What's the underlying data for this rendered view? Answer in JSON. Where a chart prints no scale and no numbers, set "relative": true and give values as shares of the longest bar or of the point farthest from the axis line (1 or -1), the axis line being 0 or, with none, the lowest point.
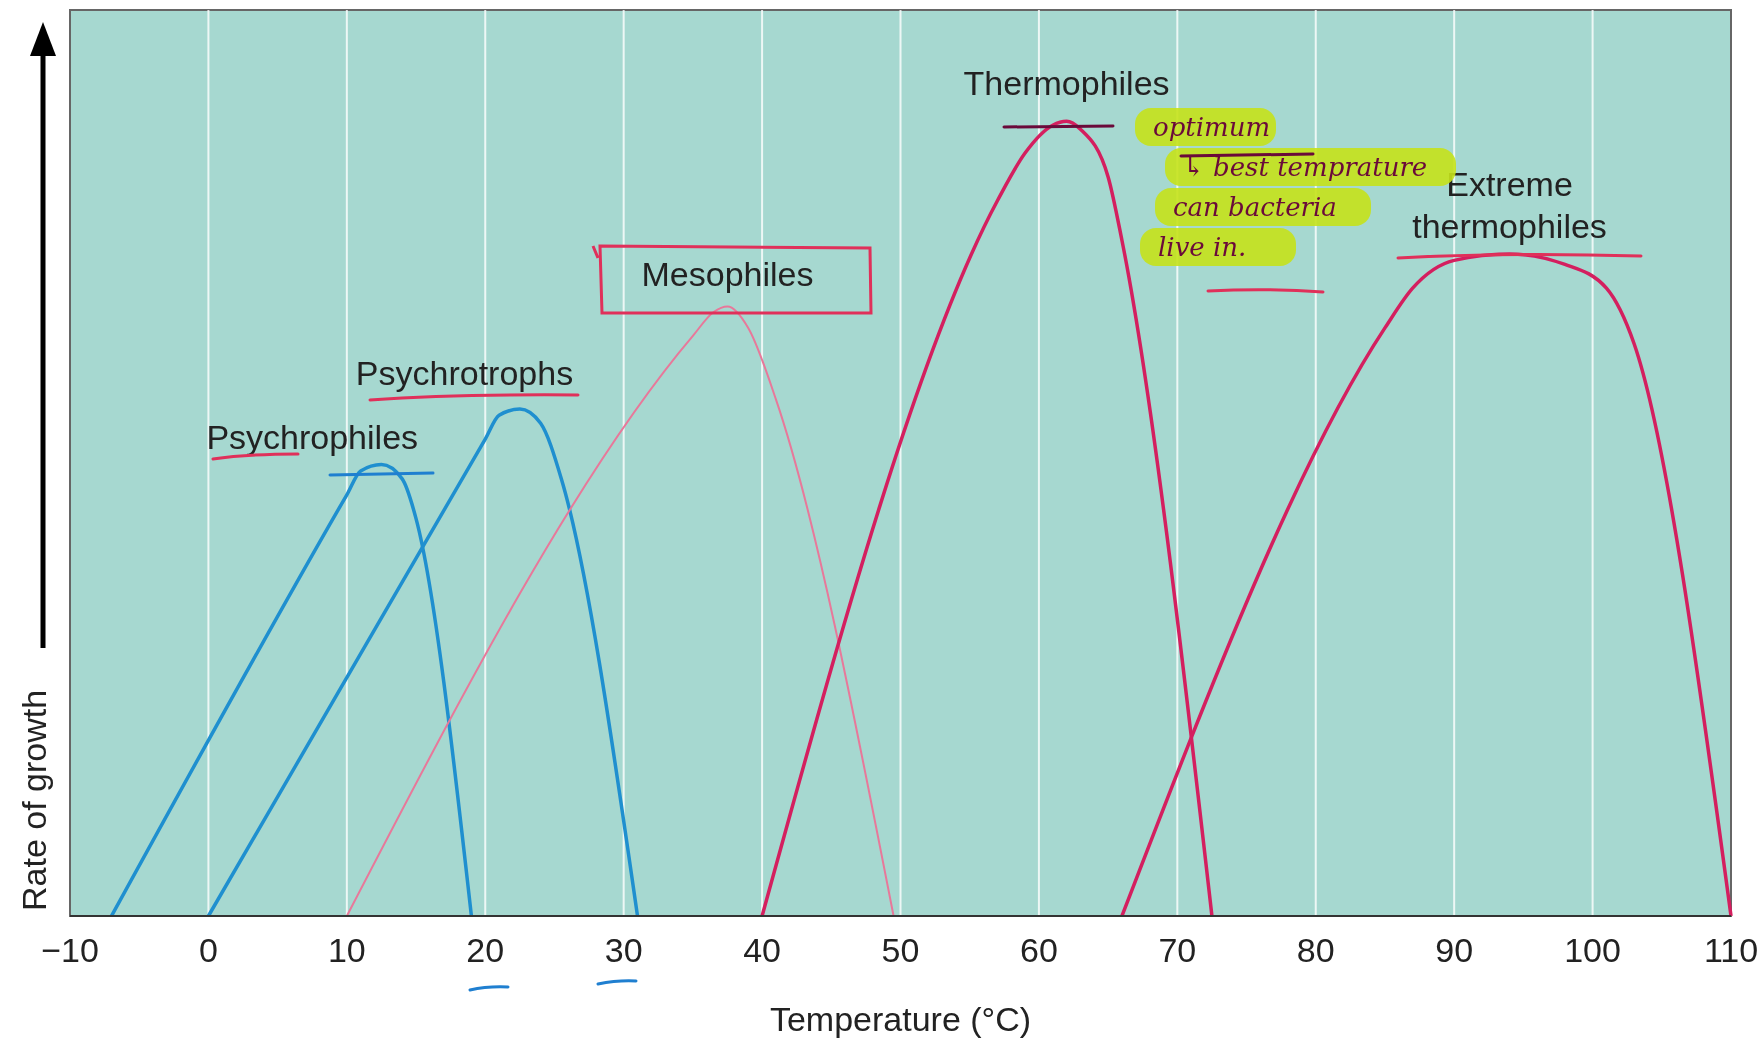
{
  "chart_data": {
    "type": "line",
    "xlabel": "Temperature (°C)",
    "ylabel": "Rate of growth",
    "relative": true,
    "grid": "x",
    "xlim": [
      -10,
      110
    ],
    "xticks": [
      {
        "value": -10,
        "label": "−10"
      },
      0,
      10,
      20,
      30,
      40,
      50,
      60,
      70,
      80,
      90,
      100,
      110
    ],
    "series": [
      {
        "name": "Psychrophiles",
        "color": "#1f8fcf",
        "x": [
          -7,
          10,
          11,
          12.5,
          14,
          15,
          19
        ],
        "values": [
          0,
          0.53,
          0.56,
          0.568,
          0.55,
          0.5,
          0
        ]
      },
      {
        "name": "Psychrotrophs",
        "color": "#1f8fcf",
        "x": [
          0,
          20,
          21,
          22.5,
          24,
          25.5,
          31
        ],
        "values": [
          0,
          0.6,
          0.63,
          0.638,
          0.62,
          0.55,
          0
        ]
      },
      {
        "name": "Mesophiles",
        "color": "#e8789a",
        "x": [
          10,
          35,
          36.5,
          37.5,
          39,
          41,
          49.5
        ],
        "values": [
          0,
          0.73,
          0.76,
          0.767,
          0.74,
          0.65,
          0
        ]
      },
      {
        "name": "Thermophiles",
        "color": "#d41f5f",
        "x": [
          40,
          57,
          59,
          61,
          62,
          63,
          65,
          66,
          72.5
        ],
        "values": [
          0,
          0.9,
          0.96,
          0.995,
          1,
          0.99,
          0.93,
          0.85,
          0
        ]
      },
      {
        "name": "Extreme thermophiles",
        "color": "#d41f5f",
        "x": [
          66,
          85,
          87,
          90,
          94,
          98,
          101,
          103,
          110
        ],
        "values": [
          0,
          0.74,
          0.79,
          0.825,
          0.833,
          0.82,
          0.79,
          0.72,
          0
        ]
      }
    ],
    "annotations": [
      "optimum",
      "↳ best temprature",
      "can bacteria",
      "live in."
    ]
  }
}
